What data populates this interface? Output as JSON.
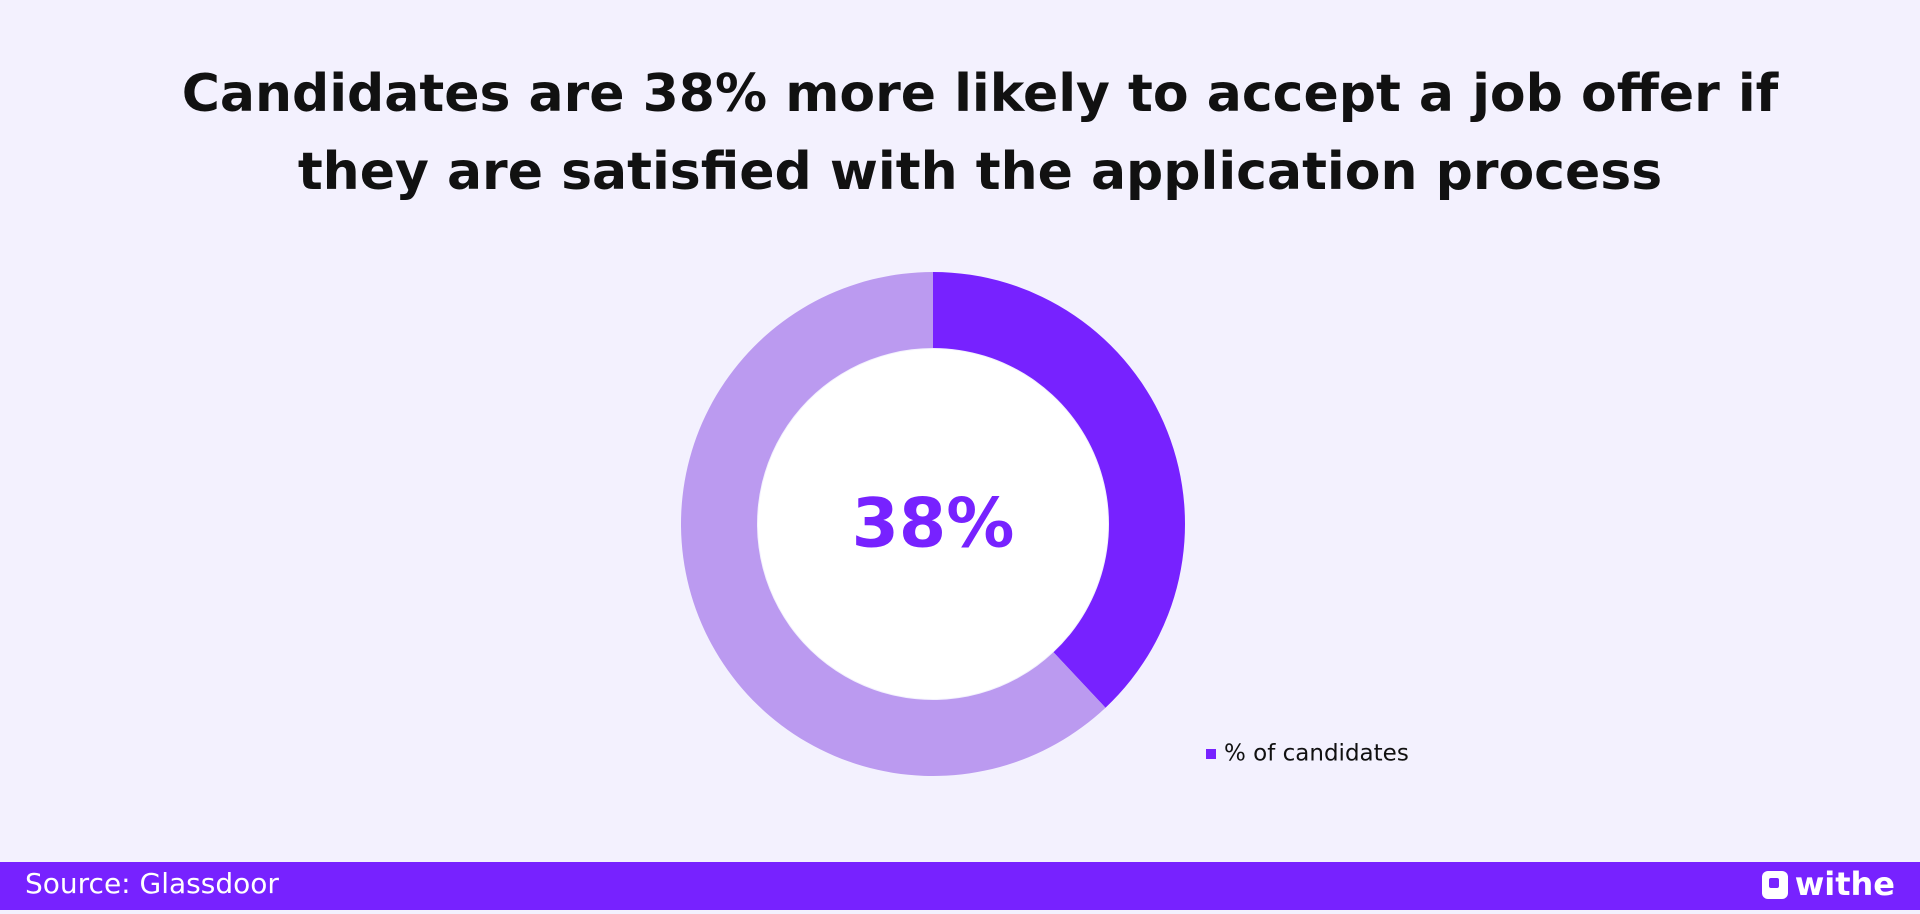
{
  "chart_data": {
    "type": "donut",
    "title": [
      "Candidates are 38% more likely to accept a job offer if",
      "they are satisfied with the application process"
    ],
    "categories": [
      "% of candidates",
      null
    ],
    "values": [
      38,
      62
    ],
    "value_labels": [
      "38%",
      null
    ],
    "colors": [
      "#7722ff",
      "#bb9af0"
    ],
    "legend": "bottom-right"
  },
  "footer": {
    "source": "Source: Glassdoor",
    "brand": "withe"
  }
}
